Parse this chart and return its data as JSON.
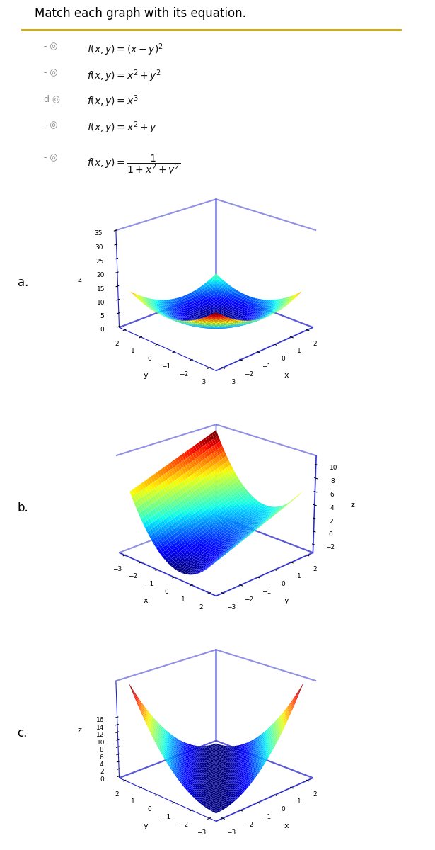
{
  "title": "Match each graph with its equation.",
  "eq_texts_latex": [
    "$f(x, y) = (x - y)^2$",
    "$f(x, y) = x^2 + y^2$",
    "$f(x, y) = x^3$",
    "$f(x, y) = x^2 + y$",
    "$f(x, y) = \\dfrac{1}{1 + x^2 + y^2}$"
  ],
  "prefixes": [
    "- ◎",
    "- ◎",
    "d ◎",
    "- ◎",
    "- ◎"
  ],
  "labels": [
    "a.",
    "b.",
    "c."
  ],
  "plot_a": {
    "func": "x2_plus_y2",
    "x_range": [
      -3,
      2
    ],
    "y_range": [
      -3,
      2
    ],
    "z_ticks": [
      0,
      5,
      10,
      15,
      20,
      25,
      30,
      35
    ],
    "z_label": "z",
    "xlabel": "x",
    "ylabel": "y",
    "elev": 22,
    "azim": -135
  },
  "plot_b": {
    "func": "x2_plus_y",
    "x_range": [
      -3,
      2
    ],
    "y_range": [
      -3,
      2
    ],
    "z_ticks": [
      -2,
      0,
      2,
      4,
      6,
      8,
      10
    ],
    "z_label": "z",
    "xlabel": "x",
    "ylabel": "y",
    "elev": 22,
    "azim": -45
  },
  "plot_c": {
    "func": "x_minus_y_sq",
    "x_range": [
      -3,
      2
    ],
    "y_range": [
      -3,
      2
    ],
    "z_ticks": [
      0,
      2,
      4,
      6,
      8,
      10,
      12,
      14,
      16
    ],
    "z_label": "z",
    "xlabel": "x",
    "ylabel": "y",
    "elev": 22,
    "azim": -135
  },
  "background_color": "#ffffff",
  "box_color": "#2222cc",
  "header_border_color": "#c8a000",
  "n_grid": 40
}
